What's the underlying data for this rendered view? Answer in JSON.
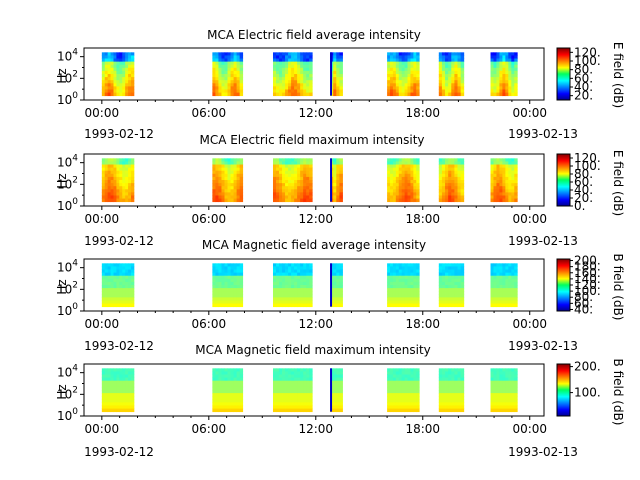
{
  "chart_data": [
    {
      "type": "heatmap",
      "title": "MCA  Electric field average intensity",
      "ylabel": "Hz",
      "y_ticks": [
        "10",
        "10",
        "10"
      ],
      "y_tick_exponents": [
        "0",
        "2",
        "4"
      ],
      "ylim_log10": [
        0,
        4.8
      ],
      "x_ticks": [
        "00:00",
        "06:00",
        "12:00",
        "18:00",
        "00:00"
      ],
      "x_date_labels": [
        "1993-02-12",
        "1993-02-13"
      ],
      "xlim_hours": [
        -1.0,
        24.8
      ],
      "colorbar": {
        "label": "E field (dB)",
        "ticks": [
          "20.",
          "40.",
          "60.",
          "80.",
          "100.",
          "120."
        ],
        "tick_values": [
          20,
          40,
          60,
          80,
          100,
          120
        ],
        "range": [
          10,
          130
        ]
      },
      "data_segments_hours": [
        [
          0.0,
          1.8
        ],
        [
          6.2,
          7.9
        ],
        [
          9.6,
          11.8
        ],
        [
          12.8,
          13.5
        ],
        [
          16.0,
          17.8
        ],
        [
          18.9,
          20.3
        ],
        [
          21.8,
          23.3
        ]
      ],
      "freq_range_log10": [
        0.4,
        4.4
      ],
      "profile": "electric_average"
    },
    {
      "type": "heatmap",
      "title": "MCA  Electric field maximum intensity",
      "ylabel": "Hz",
      "y_ticks": [
        "10",
        "10",
        "10"
      ],
      "y_tick_exponents": [
        "0",
        "2",
        "4"
      ],
      "ylim_log10": [
        0,
        4.8
      ],
      "x_ticks": [
        "00:00",
        "06:00",
        "12:00",
        "18:00",
        "00:00"
      ],
      "x_date_labels": [
        "1993-02-12",
        "1993-02-13"
      ],
      "xlim_hours": [
        -1.0,
        24.8
      ],
      "colorbar": {
        "label": "E field (dB)",
        "ticks": [
          "0.",
          "20.",
          "40.",
          "60.",
          "80.",
          "100.",
          "120."
        ],
        "tick_values": [
          0,
          20,
          40,
          60,
          80,
          100,
          120
        ],
        "range": [
          0,
          130
        ]
      },
      "data_segments_hours": [
        [
          0.0,
          1.8
        ],
        [
          6.2,
          7.9
        ],
        [
          9.6,
          11.8
        ],
        [
          12.8,
          13.5
        ],
        [
          16.0,
          17.8
        ],
        [
          18.9,
          20.3
        ],
        [
          21.8,
          23.3
        ]
      ],
      "freq_range_log10": [
        0.4,
        4.4
      ],
      "profile": "electric_maximum"
    },
    {
      "type": "heatmap",
      "title": "MCA  Magnetic field average intensity",
      "ylabel": "Hz",
      "y_ticks": [
        "10",
        "10",
        "10"
      ],
      "y_tick_exponents": [
        "0",
        "2",
        "4"
      ],
      "ylim_log10": [
        0,
        4.8
      ],
      "x_ticks": [
        "00:00",
        "06:00",
        "12:00",
        "18:00",
        "00:00"
      ],
      "x_date_labels": [
        "1993-02-12",
        "1993-02-13"
      ],
      "xlim_hours": [
        -1.0,
        24.8
      ],
      "colorbar": {
        "label": "B field (dB)",
        "ticks": [
          "40.",
          "60.",
          "80.",
          "100.",
          "120.",
          "140.",
          "160.",
          "180.",
          "200."
        ],
        "tick_values": [
          40,
          60,
          80,
          100,
          120,
          140,
          160,
          180,
          200
        ],
        "range": [
          35,
          205
        ]
      },
      "data_segments_hours": [
        [
          0.0,
          1.8
        ],
        [
          6.2,
          7.9
        ],
        [
          9.6,
          11.8
        ],
        [
          12.8,
          13.5
        ],
        [
          16.0,
          17.8
        ],
        [
          18.9,
          20.3
        ],
        [
          21.8,
          23.3
        ]
      ],
      "freq_range_log10": [
        0.4,
        4.4
      ],
      "profile": "magnetic_average"
    },
    {
      "type": "heatmap",
      "title": "MCA  Magnetic field maximum intensity",
      "ylabel": "Hz",
      "y_ticks": [
        "10",
        "10",
        "10"
      ],
      "y_tick_exponents": [
        "0",
        "2",
        "4"
      ],
      "ylim_log10": [
        0,
        4.8
      ],
      "x_ticks": [
        "00:00",
        "06:00",
        "12:00",
        "18:00",
        "00:00"
      ],
      "x_date_labels": [
        "1993-02-12",
        "1993-02-13"
      ],
      "xlim_hours": [
        -1.0,
        24.8
      ],
      "colorbar": {
        "label": "B field (dB)",
        "ticks": [
          "100.",
          "200."
        ],
        "tick_values": [
          100,
          200
        ],
        "range": [
          10,
          210
        ]
      },
      "data_segments_hours": [
        [
          0.0,
          1.8
        ],
        [
          6.2,
          7.9
        ],
        [
          9.6,
          11.8
        ],
        [
          12.8,
          13.5
        ],
        [
          16.0,
          17.8
        ],
        [
          18.9,
          20.3
        ],
        [
          21.8,
          23.3
        ]
      ],
      "freq_range_log10": [
        0.4,
        4.4
      ],
      "profile": "magnetic_maximum"
    }
  ]
}
